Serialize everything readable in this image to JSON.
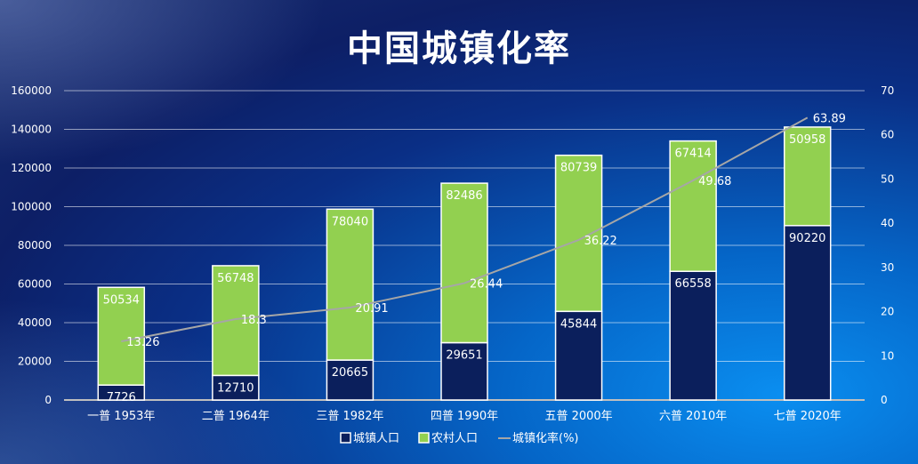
{
  "chart_data": {
    "type": "bar",
    "title": "中国城镇化率",
    "categories": [
      "一普 1953年",
      "二普 1964年",
      "三普 1982年",
      "四普 1990年",
      "五普 2000年",
      "六普 2010年",
      "七普 2020年"
    ],
    "series": [
      {
        "name": "城镇人口",
        "type": "stacked-bar",
        "color": "#0b1f5c",
        "values": [
          7726,
          12710,
          20665,
          29651,
          45844,
          66558,
          90220
        ]
      },
      {
        "name": "农村人口",
        "type": "stacked-bar",
        "color": "#92d050",
        "values": [
          50534,
          56748,
          78040,
          82486,
          80739,
          67414,
          50958
        ]
      },
      {
        "name": "城镇化率(%)",
        "type": "line",
        "axis": "right",
        "color": "#a6a6a6",
        "values": [
          13.26,
          18.3,
          20.91,
          26.44,
          36.22,
          49.68,
          63.89
        ]
      }
    ],
    "ylim": [
      0,
      160000
    ],
    "yticks": [
      0,
      20000,
      40000,
      60000,
      80000,
      100000,
      120000,
      140000,
      160000
    ],
    "y2lim": [
      0,
      70
    ],
    "y2ticks": [
      0,
      10,
      20,
      30,
      40,
      50,
      60,
      70
    ],
    "grid": true,
    "legend": "bottom"
  }
}
